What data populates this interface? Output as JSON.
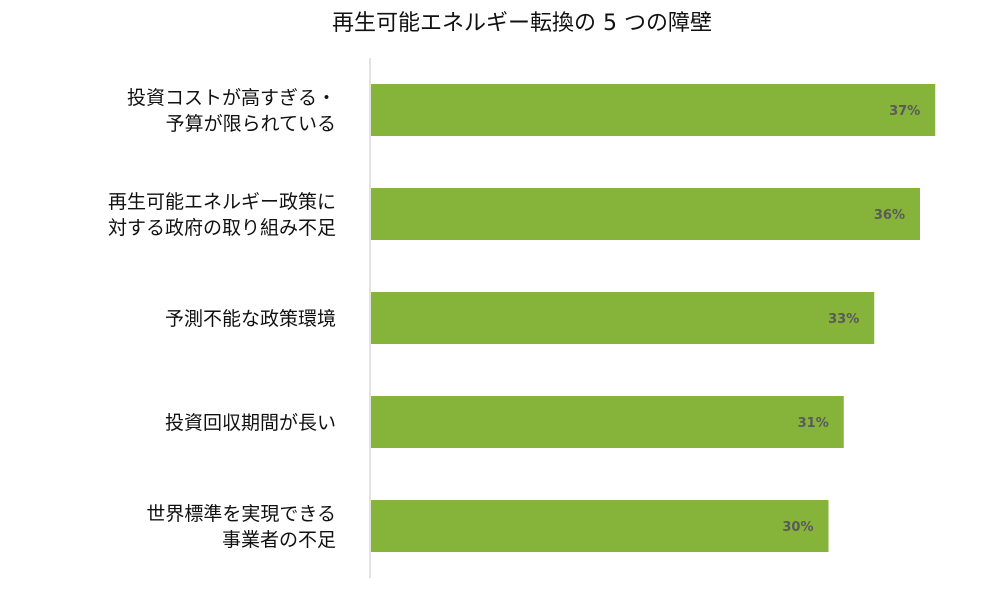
{
  "chart_data": {
    "type": "bar",
    "orientation": "horizontal",
    "title": "再生可能エネルギー転換の 5 つの障壁",
    "categories": [
      [
        "投資コストが高すぎる・",
        "予算が限られている"
      ],
      [
        "再生可能エネルギー政策に",
        "対する政府の取り組み不足"
      ],
      [
        "予測不能な政策環境"
      ],
      [
        "投資回収期間が長い"
      ],
      [
        "世界標準を実現できる",
        "事業者の不足"
      ]
    ],
    "values": [
      37,
      36,
      33,
      31,
      30
    ],
    "value_labels": [
      "37%",
      "36%",
      "33%",
      "31%",
      "30%"
    ],
    "unit": "%",
    "xlim": [
      0,
      40
    ],
    "bar_color": "#86b33a",
    "label_color": "#5a5a5a",
    "axis_color": "#d9d9d9",
    "grid": false,
    "legend": "none"
  }
}
